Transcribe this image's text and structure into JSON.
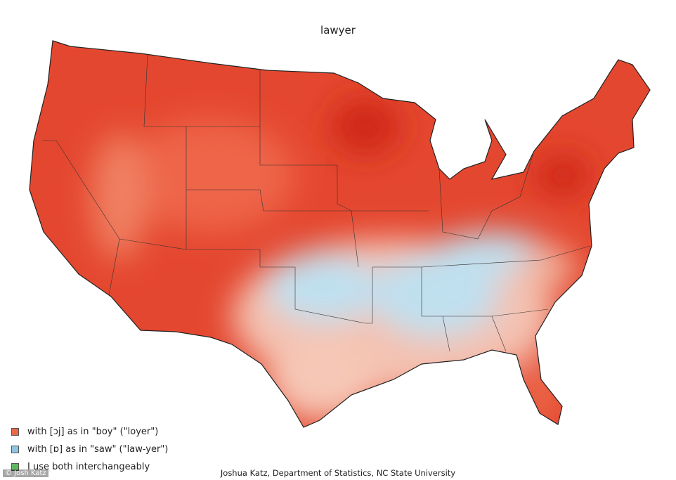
{
  "title": "lawyer",
  "legend": [
    {
      "label": "with [ɔj] as in \"boy\" (\"loyer\")",
      "color": "#e8684a"
    },
    {
      "label": "with [ɒ] as in \"saw\" (\"law-yer\")",
      "color": "#8fc3e3"
    },
    {
      "label": "I use both interchangeably",
      "color": "#5fb85f"
    }
  ],
  "credit": "Joshua Katz, Department of Statistics, NC State University",
  "watermark": "© Josh Katz"
}
